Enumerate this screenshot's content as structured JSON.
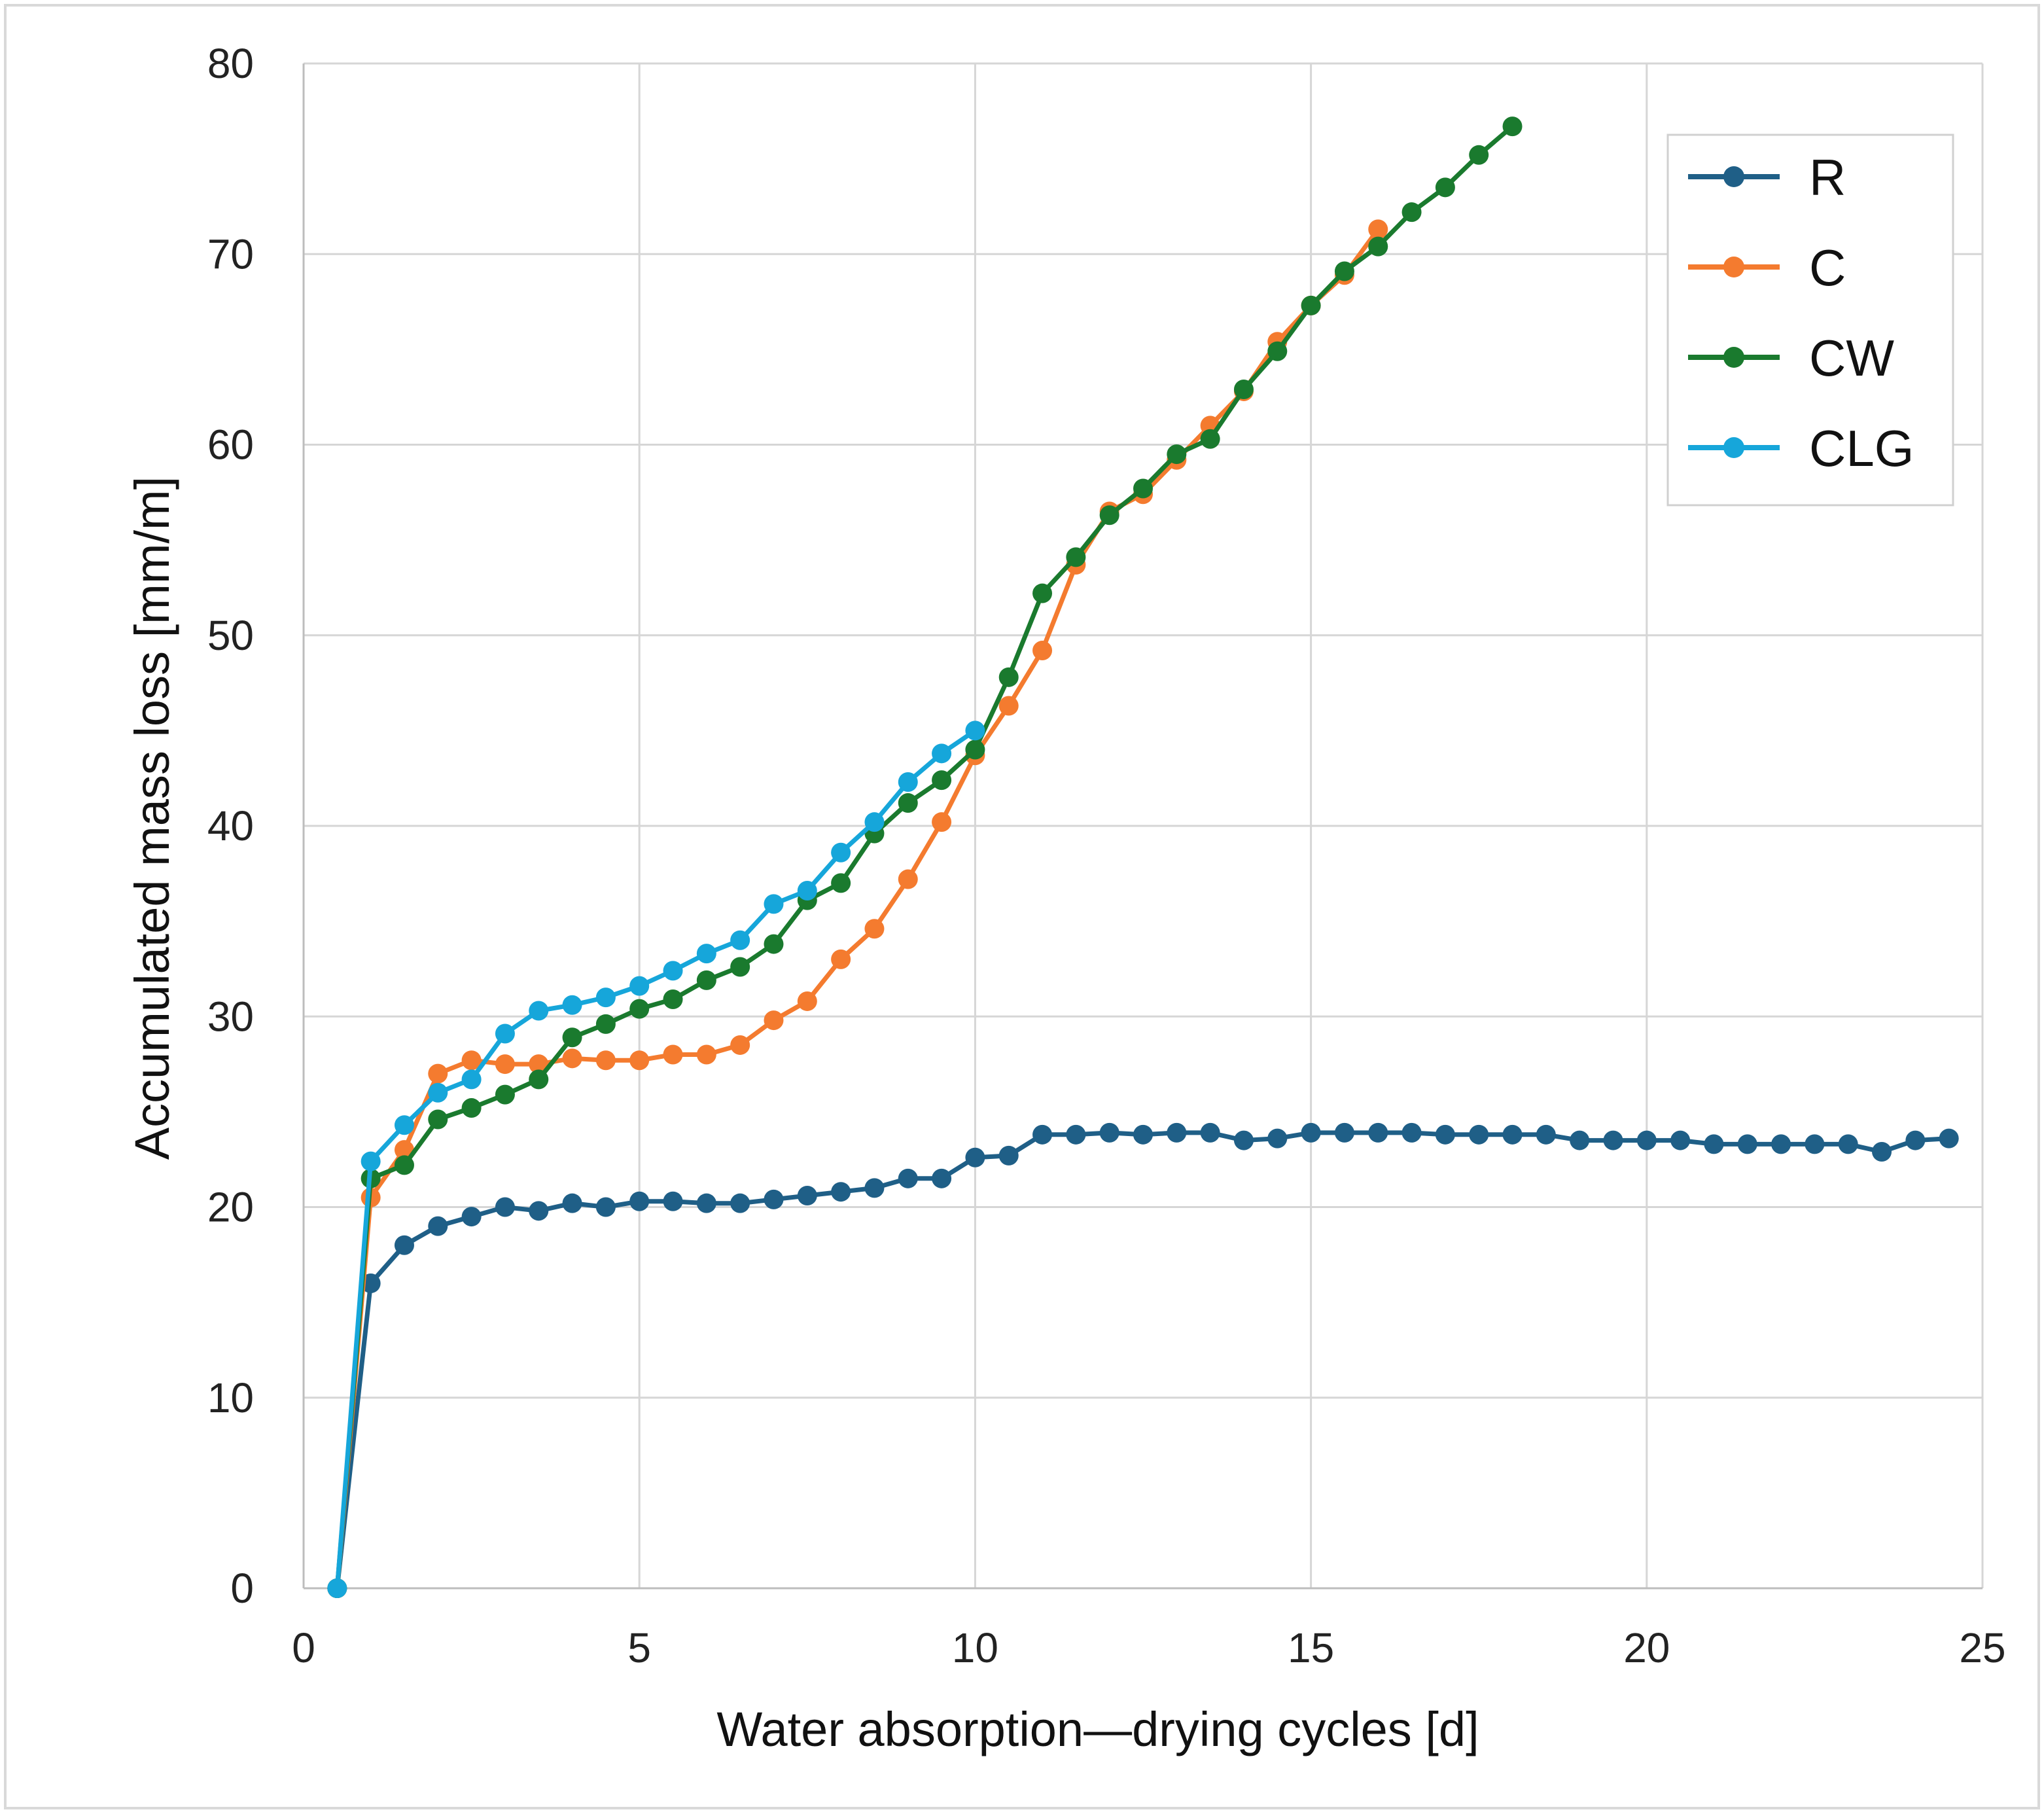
{
  "chart_data": {
    "type": "line",
    "xlabel": "Water absorption—drying cycles [d]",
    "ylabel": "Accumulated mass loss [mm/m]",
    "xlim": [
      0,
      25
    ],
    "ylim": [
      0,
      80
    ],
    "xticks": [
      0,
      5,
      10,
      15,
      20,
      25
    ],
    "yticks": [
      0,
      10,
      20,
      30,
      40,
      50,
      60,
      70,
      80
    ],
    "grid": true,
    "legend_position": "top-right",
    "series": [
      {
        "name": "R",
        "color": "#1f5f87",
        "x": [
          0.5,
          1,
          1.5,
          2,
          2.5,
          3,
          3.5,
          4,
          4.5,
          5,
          5.5,
          6,
          6.5,
          7,
          7.5,
          8,
          8.5,
          9,
          9.5,
          10,
          10.5,
          11,
          11.5,
          12,
          12.5,
          13,
          13.5,
          14,
          14.5,
          15,
          15.5,
          16,
          16.5,
          17,
          17.5,
          18,
          18.5,
          19,
          19.5,
          20,
          20.5,
          21,
          21.5,
          22,
          22.5,
          23,
          23.5,
          24,
          24.5
        ],
        "y": [
          0,
          16,
          18,
          19,
          19.5,
          20,
          19.8,
          20.2,
          20,
          20.3,
          20.3,
          20.2,
          20.2,
          20.4,
          20.6,
          20.8,
          21,
          21.5,
          21.5,
          22.6,
          22.7,
          23.8,
          23.8,
          23.9,
          23.8,
          23.9,
          23.9,
          23.5,
          23.6,
          23.9,
          23.9,
          23.9,
          23.9,
          23.8,
          23.8,
          23.8,
          23.8,
          23.5,
          23.5,
          23.5,
          23.5,
          23.3,
          23.3,
          23.3,
          23.3,
          23.3,
          22.9,
          23.5,
          23.6
        ]
      },
      {
        "name": "C",
        "color": "#f47b2f",
        "x": [
          0.5,
          1,
          1.5,
          2,
          2.5,
          3,
          3.5,
          4,
          4.5,
          5,
          5.5,
          6,
          6.5,
          7,
          7.5,
          8,
          8.5,
          9,
          9.5,
          10,
          10.5,
          11,
          11.5,
          12,
          12.5,
          13,
          13.5,
          14,
          14.5,
          15,
          15.5,
          16
        ],
        "y": [
          0,
          20.5,
          23,
          27,
          27.7,
          27.5,
          27.5,
          27.8,
          27.7,
          27.7,
          28,
          28,
          28.5,
          29.8,
          30.8,
          33,
          34.6,
          37.2,
          40.2,
          43.7,
          46.3,
          49.2,
          53.7,
          56.5,
          57.4,
          59.2,
          61,
          62.8,
          65.4,
          67.3,
          68.9,
          71.3
        ]
      },
      {
        "name": "CW",
        "color": "#1a7a2e",
        "x": [
          0.5,
          1,
          1.5,
          2,
          2.5,
          3,
          3.5,
          4,
          4.5,
          5,
          5.5,
          6,
          6.5,
          7,
          7.5,
          8,
          8.5,
          9,
          9.5,
          10,
          10.5,
          11,
          11.5,
          12,
          12.5,
          13,
          13.5,
          14,
          14.5,
          15,
          15.5,
          16,
          16.5,
          17,
          17.5,
          18
        ],
        "y": [
          0,
          21.5,
          22.2,
          24.6,
          25.2,
          25.9,
          26.7,
          28.9,
          29.6,
          30.4,
          30.9,
          31.9,
          32.6,
          33.8,
          36.1,
          37,
          39.6,
          41.2,
          42.4,
          44,
          47.8,
          52.2,
          54.1,
          56.3,
          57.7,
          59.5,
          60.3,
          62.9,
          64.9,
          67.3,
          69.1,
          70.4,
          72.2,
          73.5,
          75.2,
          76.7
        ]
      },
      {
        "name": "CLG",
        "color": "#16a6da",
        "x": [
          0.5,
          1,
          1.5,
          2,
          2.5,
          3,
          3.5,
          4,
          4.5,
          5,
          5.5,
          6,
          6.5,
          7,
          7.5,
          8,
          8.5,
          9,
          9.5,
          10
        ],
        "y": [
          0,
          22.4,
          24.3,
          26,
          26.7,
          29.1,
          30.3,
          30.6,
          31,
          31.6,
          32.4,
          33.3,
          34,
          35.9,
          36.6,
          38.6,
          40.2,
          42.3,
          43.8,
          45
        ]
      }
    ]
  }
}
